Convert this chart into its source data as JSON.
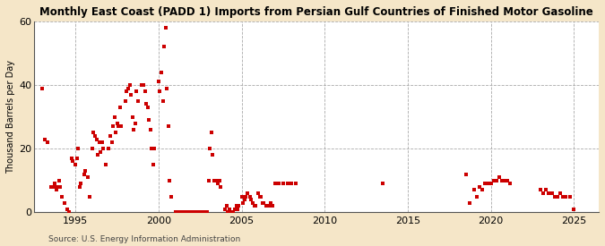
{
  "title": "Monthly East Coast (PADD 1) Imports from Persian Gulf Countries of Finished Motor Gasoline",
  "ylabel": "Thousand Barrels per Day",
  "source": "Source: U.S. Energy Information Administration",
  "background_color": "#f5e6c8",
  "plot_bg_color": "#ffffff",
  "marker_color": "#cc0000",
  "marker_size": 3.5,
  "ylim": [
    0,
    60
  ],
  "yticks": [
    0,
    20,
    40,
    60
  ],
  "xlim": [
    1992.5,
    2026.5
  ],
  "xticks": [
    1995,
    2000,
    2005,
    2010,
    2015,
    2020,
    2025
  ],
  "data": [
    [
      1993.0,
      39.0
    ],
    [
      1993.17,
      23.0
    ],
    [
      1993.33,
      22.0
    ],
    [
      1993.5,
      8.0
    ],
    [
      1993.67,
      8.0
    ],
    [
      1993.75,
      9.0
    ],
    [
      1993.83,
      7.0
    ],
    [
      1993.92,
      8.0
    ],
    [
      1994.0,
      10.0
    ],
    [
      1994.08,
      8.0
    ],
    [
      1994.17,
      5.0
    ],
    [
      1994.33,
      3.0
    ],
    [
      1994.5,
      1.0
    ],
    [
      1994.58,
      0.0
    ],
    [
      1994.75,
      17.0
    ],
    [
      1994.83,
      16.0
    ],
    [
      1995.0,
      15.0
    ],
    [
      1995.08,
      17.0
    ],
    [
      1995.17,
      20.0
    ],
    [
      1995.25,
      8.0
    ],
    [
      1995.33,
      9.0
    ],
    [
      1995.5,
      12.0
    ],
    [
      1995.58,
      13.0
    ],
    [
      1995.75,
      11.0
    ],
    [
      1995.83,
      5.0
    ],
    [
      1996.0,
      20.0
    ],
    [
      1996.08,
      25.0
    ],
    [
      1996.17,
      24.0
    ],
    [
      1996.25,
      23.0
    ],
    [
      1996.33,
      18.0
    ],
    [
      1996.42,
      22.0
    ],
    [
      1996.5,
      19.0
    ],
    [
      1996.58,
      22.0
    ],
    [
      1996.67,
      20.0
    ],
    [
      1996.83,
      15.0
    ],
    [
      1997.0,
      20.0
    ],
    [
      1997.08,
      24.0
    ],
    [
      1997.17,
      22.0
    ],
    [
      1997.25,
      27.0
    ],
    [
      1997.33,
      30.0
    ],
    [
      1997.42,
      25.0
    ],
    [
      1997.5,
      28.0
    ],
    [
      1997.58,
      27.0
    ],
    [
      1997.67,
      33.0
    ],
    [
      1997.75,
      27.0
    ],
    [
      1998.0,
      35.0
    ],
    [
      1998.08,
      38.0
    ],
    [
      1998.17,
      39.0
    ],
    [
      1998.25,
      40.0
    ],
    [
      1998.33,
      37.0
    ],
    [
      1998.42,
      30.0
    ],
    [
      1998.5,
      26.0
    ],
    [
      1998.58,
      28.0
    ],
    [
      1998.67,
      38.0
    ],
    [
      1998.75,
      35.0
    ],
    [
      1999.0,
      40.0
    ],
    [
      1999.08,
      40.0
    ],
    [
      1999.17,
      38.0
    ],
    [
      1999.25,
      34.0
    ],
    [
      1999.33,
      33.0
    ],
    [
      1999.42,
      29.0
    ],
    [
      1999.5,
      26.0
    ],
    [
      1999.58,
      20.0
    ],
    [
      1999.67,
      15.0
    ],
    [
      1999.75,
      20.0
    ],
    [
      2000.0,
      41.0
    ],
    [
      2000.08,
      38.0
    ],
    [
      2000.17,
      44.0
    ],
    [
      2000.25,
      35.0
    ],
    [
      2000.33,
      52.0
    ],
    [
      2000.42,
      58.0
    ],
    [
      2000.5,
      39.0
    ],
    [
      2000.58,
      27.0
    ],
    [
      2000.67,
      10.0
    ],
    [
      2000.75,
      5.0
    ],
    [
      2001.0,
      0.0
    ],
    [
      2001.08,
      0.0
    ],
    [
      2001.17,
      0.0
    ],
    [
      2001.25,
      0.0
    ],
    [
      2001.33,
      0.0
    ],
    [
      2001.42,
      0.0
    ],
    [
      2001.5,
      0.0
    ],
    [
      2001.58,
      0.0
    ],
    [
      2001.67,
      0.0
    ],
    [
      2001.75,
      0.0
    ],
    [
      2001.83,
      0.0
    ],
    [
      2001.92,
      0.0
    ],
    [
      2002.0,
      0.0
    ],
    [
      2002.08,
      0.0
    ],
    [
      2002.17,
      0.0
    ],
    [
      2002.25,
      0.0
    ],
    [
      2002.33,
      0.0
    ],
    [
      2002.42,
      0.0
    ],
    [
      2002.5,
      0.0
    ],
    [
      2002.58,
      0.0
    ],
    [
      2002.67,
      0.0
    ],
    [
      2002.75,
      0.0
    ],
    [
      2002.83,
      0.0
    ],
    [
      2002.92,
      0.0
    ],
    [
      2003.0,
      10.0
    ],
    [
      2003.08,
      20.0
    ],
    [
      2003.17,
      25.0
    ],
    [
      2003.25,
      18.0
    ],
    [
      2003.33,
      10.0
    ],
    [
      2003.42,
      10.0
    ],
    [
      2003.5,
      10.0
    ],
    [
      2003.58,
      9.0
    ],
    [
      2003.67,
      10.0
    ],
    [
      2003.75,
      8.0
    ],
    [
      2004.0,
      1.0
    ],
    [
      2004.08,
      2.0
    ],
    [
      2004.17,
      0.0
    ],
    [
      2004.25,
      1.0
    ],
    [
      2004.33,
      0.0
    ],
    [
      2004.5,
      0.0
    ],
    [
      2004.58,
      1.0
    ],
    [
      2004.67,
      2.0
    ],
    [
      2004.75,
      1.0
    ],
    [
      2004.83,
      2.0
    ],
    [
      2005.0,
      5.0
    ],
    [
      2005.08,
      3.0
    ],
    [
      2005.17,
      4.0
    ],
    [
      2005.25,
      5.0
    ],
    [
      2005.33,
      6.0
    ],
    [
      2005.5,
      5.0
    ],
    [
      2005.58,
      4.0
    ],
    [
      2005.67,
      3.0
    ],
    [
      2005.75,
      2.0
    ],
    [
      2005.83,
      2.0
    ],
    [
      2006.0,
      6.0
    ],
    [
      2006.08,
      5.0
    ],
    [
      2006.17,
      5.0
    ],
    [
      2006.25,
      3.0
    ],
    [
      2006.33,
      3.0
    ],
    [
      2006.5,
      2.0
    ],
    [
      2006.58,
      2.0
    ],
    [
      2006.67,
      2.0
    ],
    [
      2006.75,
      3.0
    ],
    [
      2006.83,
      2.0
    ],
    [
      2007.0,
      9.0
    ],
    [
      2007.25,
      9.0
    ],
    [
      2007.5,
      9.0
    ],
    [
      2007.75,
      9.0
    ],
    [
      2008.0,
      9.0
    ],
    [
      2008.25,
      9.0
    ],
    [
      2013.5,
      9.0
    ],
    [
      2018.5,
      12.0
    ],
    [
      2018.75,
      3.0
    ],
    [
      2019.0,
      7.0
    ],
    [
      2019.17,
      5.0
    ],
    [
      2019.33,
      8.0
    ],
    [
      2019.5,
      7.0
    ],
    [
      2019.67,
      9.0
    ],
    [
      2019.83,
      9.0
    ],
    [
      2020.0,
      9.0
    ],
    [
      2020.17,
      10.0
    ],
    [
      2020.33,
      10.0
    ],
    [
      2020.5,
      11.0
    ],
    [
      2020.67,
      10.0
    ],
    [
      2020.83,
      10.0
    ],
    [
      2021.0,
      10.0
    ],
    [
      2021.17,
      9.0
    ],
    [
      2023.0,
      7.0
    ],
    [
      2023.17,
      6.0
    ],
    [
      2023.33,
      7.0
    ],
    [
      2023.5,
      6.0
    ],
    [
      2023.67,
      6.0
    ],
    [
      2023.83,
      5.0
    ],
    [
      2024.0,
      5.0
    ],
    [
      2024.17,
      6.0
    ],
    [
      2024.33,
      5.0
    ],
    [
      2024.5,
      5.0
    ],
    [
      2024.75,
      5.0
    ],
    [
      2025.0,
      1.0
    ]
  ]
}
